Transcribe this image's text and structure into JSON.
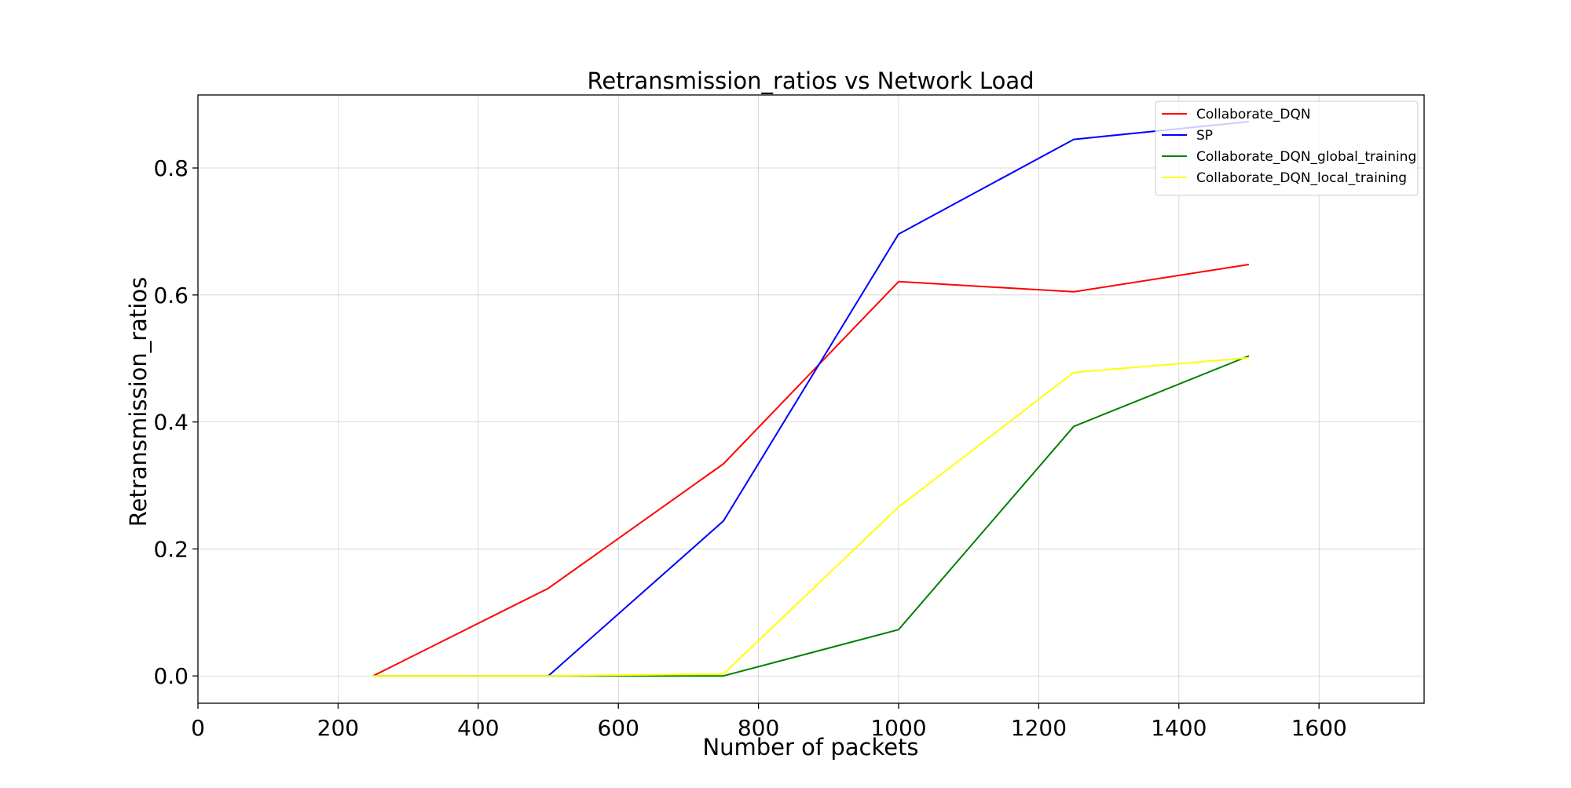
{
  "chart_data": {
    "type": "line",
    "title": "Retransmission_ratios vs Network Load",
    "xlabel": "Number of packets",
    "ylabel": "Retransmission_ratios",
    "xlim": [
      0,
      1750
    ],
    "ylim": [
      -0.043,
      0.915
    ],
    "xticks": [
      0,
      200,
      400,
      600,
      800,
      1000,
      1200,
      1400,
      1600
    ],
    "yticks": [
      0.0,
      0.2,
      0.4,
      0.6,
      0.8
    ],
    "grid": true,
    "legend_position": "top-right",
    "series": [
      {
        "name": "Collaborate_DQN",
        "color": "#ff0000",
        "x": [
          250,
          500,
          750,
          1000,
          1250,
          1500
        ],
        "y": [
          0.0,
          0.138,
          0.334,
          0.621,
          0.605,
          0.648
        ]
      },
      {
        "name": "SP",
        "color": "#0000ff",
        "x": [
          500,
          750,
          1000,
          1250,
          1500
        ],
        "y": [
          0.0,
          0.244,
          0.696,
          0.845,
          0.873
        ]
      },
      {
        "name": "Collaborate_DQN_global_training",
        "color": "#008000",
        "x": [
          250,
          500,
          750,
          1000,
          1250,
          1500
        ],
        "y": [
          0.0,
          0.0,
          0.0,
          0.073,
          0.393,
          0.504
        ]
      },
      {
        "name": "Collaborate_DQN_local_training",
        "color": "#ffff00",
        "x": [
          250,
          500,
          750,
          1000,
          1250,
          1500
        ],
        "y": [
          0.0,
          0.0,
          0.003,
          0.266,
          0.478,
          0.501
        ]
      }
    ]
  }
}
